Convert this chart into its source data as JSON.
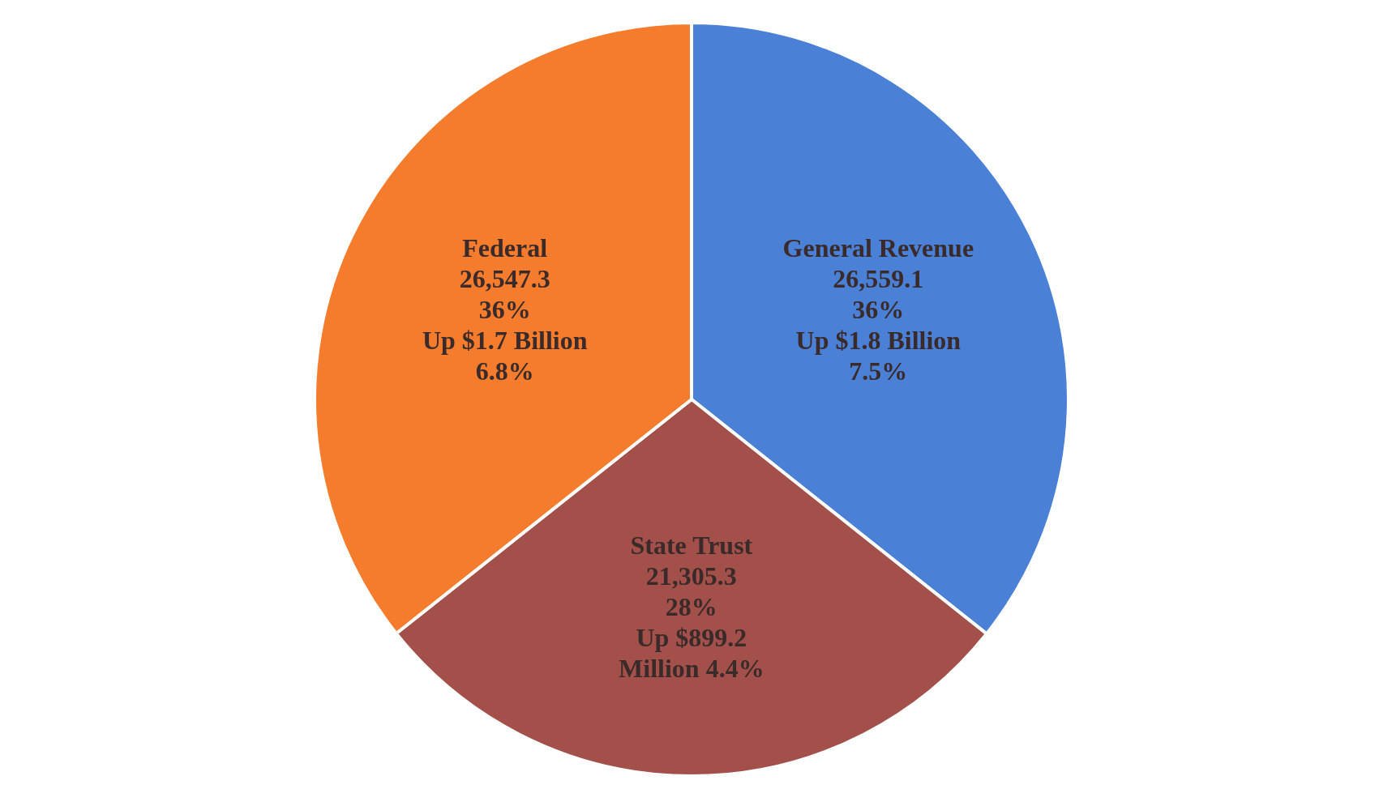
{
  "chart_data": {
    "type": "pie",
    "categories": [
      "General Revenue",
      "State Trust",
      "Federal"
    ],
    "values": [
      26559.1,
      21305.3,
      26547.3
    ],
    "colors": [
      "#4a80d6",
      "#a3504b",
      "#f47c2c"
    ],
    "value_labels": [
      "26,559.1",
      "21,305.3",
      "26,547.3"
    ],
    "annotations": [
      {
        "text": "36%",
        "x": "General Revenue"
      },
      {
        "text": "Up $1.8 Billion",
        "x": "General Revenue"
      },
      {
        "text": "7.5%",
        "x": "General Revenue"
      },
      {
        "text": "28%",
        "x": "State Trust"
      },
      {
        "text": "Up $899.2",
        "x": "State Trust"
      },
      {
        "text": "Million 4.4%",
        "x": "State Trust"
      },
      {
        "text": "36%",
        "x": "Federal"
      },
      {
        "text": "Up $1.7 Billion",
        "x": "Federal"
      },
      {
        "text": "6.8%",
        "x": "Federal"
      }
    ],
    "legend": false
  }
}
